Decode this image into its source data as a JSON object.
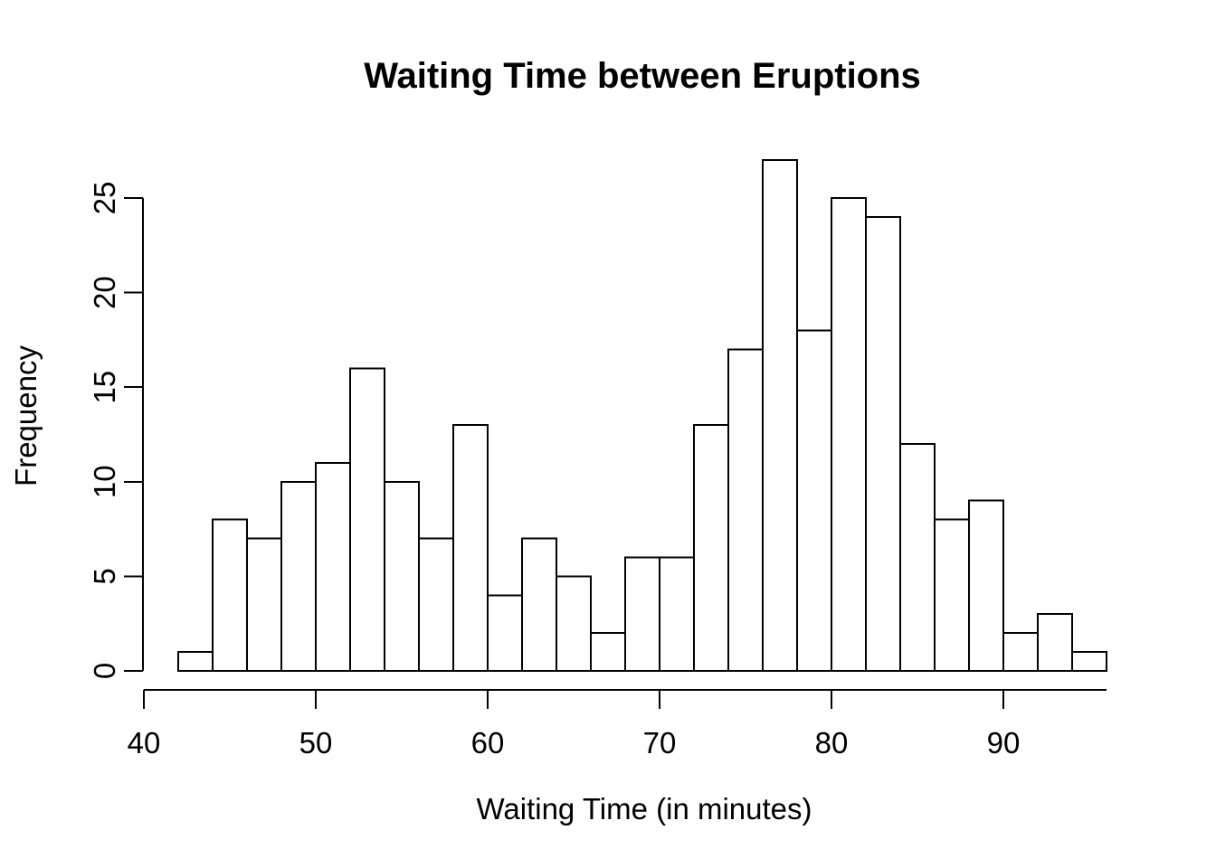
{
  "chart_data": {
    "type": "bar",
    "subtype": "histogram",
    "title": "Waiting Time between Eruptions",
    "xlabel": "Waiting Time (in minutes)",
    "ylabel": "Frequency",
    "bin_start": 42,
    "bin_width": 2,
    "bin_edges": [
      42,
      44,
      46,
      48,
      50,
      52,
      54,
      56,
      58,
      60,
      62,
      64,
      66,
      68,
      70,
      72,
      74,
      76,
      78,
      80,
      82,
      84,
      86,
      88,
      90,
      92,
      94,
      96
    ],
    "counts": [
      1,
      8,
      7,
      10,
      11,
      16,
      10,
      7,
      13,
      4,
      7,
      5,
      2,
      6,
      6,
      13,
      17,
      27,
      18,
      25,
      24,
      12,
      8,
      9,
      2,
      3,
      1
    ],
    "x_ticks": [
      40,
      50,
      60,
      70,
      80,
      90
    ],
    "y_ticks": [
      0,
      5,
      10,
      15,
      20,
      25
    ],
    "xlim": [
      40,
      96
    ],
    "ylim": [
      0,
      27
    ],
    "grid": "off",
    "legend": "none",
    "bar_fill": "#ffffff",
    "stroke_color": "#000000",
    "background": "#ffffff"
  }
}
